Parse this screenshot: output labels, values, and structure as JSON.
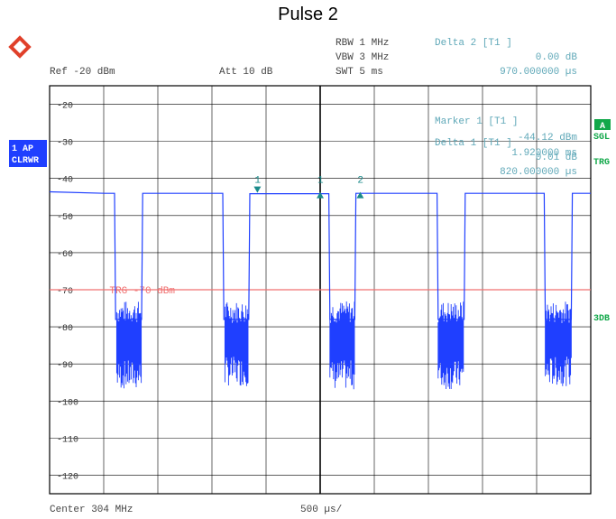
{
  "title": "Pulse 2",
  "logo_text": "R&S",
  "header": {
    "rbw": "RBW 1 MHz",
    "vbw": "VBW 3 MHz",
    "swt": "SWT 5 ms",
    "ref": "Ref -20 dBm",
    "att": "Att  10 dB"
  },
  "marker_info": {
    "delta2_title": "Delta 2 [T1 ]",
    "delta2_value": "0.00 dB",
    "delta2_time": "970.000000 µs",
    "marker1_title": "Marker 1 [T1 ]",
    "marker1_value": "-44.12 dBm",
    "marker1_time": "1.920000 ms",
    "delta1_title": "Delta 1 [T1 ]",
    "delta1_value": "0.01 dB",
    "delta1_time": "820.000000 µs"
  },
  "side_labels": {
    "trace_mode_1": "1 AP",
    "trace_mode_2": "CLRWR",
    "a_box": "A",
    "sgl": "SGL",
    "trg": "TRG",
    "db3": "3DB"
  },
  "footer": {
    "center": "Center 304 MHz",
    "span": "500 µs/"
  },
  "trigger_label": "TRG -70 dBm",
  "colors": {
    "trace": "#1f3fff",
    "trigger_line": "#f07070",
    "marker": "#1a8a8a",
    "grid": "#000000",
    "label_teal": "#5fa8b8",
    "side_blue_bg": "#1f3fff",
    "side_green_bg": "#12a84a"
  },
  "chart_data": {
    "type": "line",
    "title": "Pulse 2",
    "xlabel": "",
    "ylabel": "",
    "x_unit": "ms",
    "xlim": [
      0,
      5
    ],
    "ylim": [
      -125,
      -15
    ],
    "y_ticks": [
      -20,
      -30,
      -40,
      -50,
      -60,
      -70,
      -80,
      -90,
      -100,
      -110,
      -120
    ],
    "grid": true,
    "trigger_level_dbm": -70,
    "series": [
      {
        "x": [
          0,
          0.51,
          0.52,
          0.6,
          0.61,
          0.85,
          0.86,
          1.54,
          1.55,
          1.6,
          1.61,
          1.84,
          1.85,
          2.53,
          2.54,
          2.58,
          2.59,
          2.82,
          2.83,
          3.51,
          3.52,
          3.58,
          3.59,
          3.83,
          3.84,
          4.52,
          4.53,
          4.57,
          4.58,
          4.82,
          4.83,
          5.0
        ],
        "values": [
          -43.6,
          -44.0,
          -44.0,
          -44.0,
          -78,
          -78,
          -44.0,
          -44.0,
          -44.0,
          -44.0,
          -78,
          -78,
          -44.1,
          -44.1,
          -44.1,
          -44.1,
          -78,
          -78,
          -44.0,
          -44.0,
          -44.0,
          -44.0,
          -78,
          -78,
          -44.0,
          -44.0,
          -44.0,
          -44.0,
          -78,
          -78,
          -44.0,
          -44.0
        ]
      }
    ],
    "noise_bursts": [
      {
        "x_start": 0.62,
        "x_end": 0.85,
        "y_top": -76,
        "y_bottom": -103
      },
      {
        "x_start": 1.62,
        "x_end": 1.84,
        "y_top": -76,
        "y_bottom": -102
      },
      {
        "x_start": 2.59,
        "x_end": 2.82,
        "y_top": -76,
        "y_bottom": -103
      },
      {
        "x_start": 3.59,
        "x_end": 3.83,
        "y_top": -76,
        "y_bottom": -103
      },
      {
        "x_start": 4.58,
        "x_end": 4.82,
        "y_top": -76,
        "y_bottom": -102
      }
    ],
    "markers": [
      {
        "label": "1",
        "x": 1.92,
        "y": -44.12,
        "shape": "down"
      },
      {
        "label": "1",
        "x": 2.5,
        "y": -44.1,
        "shape": "up"
      },
      {
        "label": "2",
        "x": 2.87,
        "y": -44.1,
        "shape": "up"
      }
    ]
  }
}
